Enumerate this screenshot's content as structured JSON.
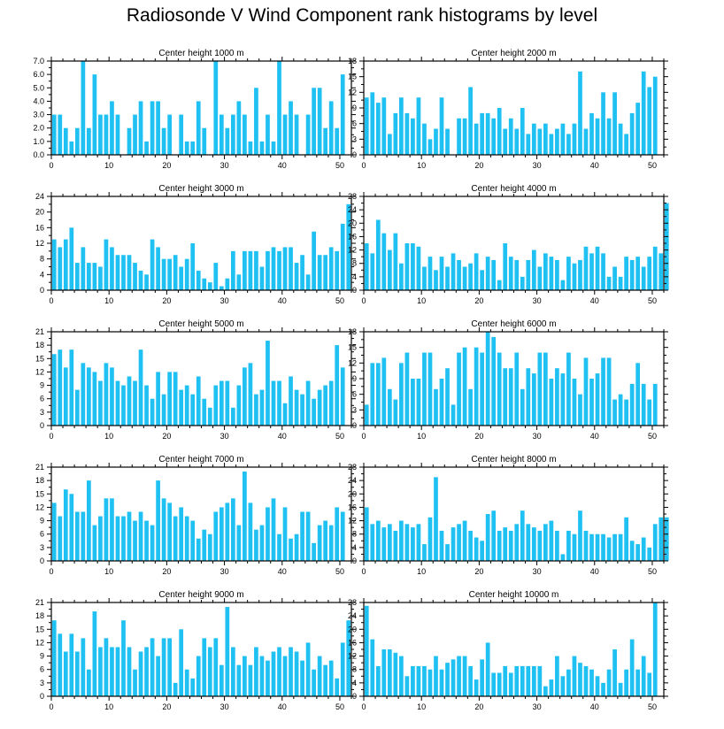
{
  "title": "Radiosonde V Wind Component rank histograms by level",
  "bar_color": "#1fc0f2",
  "chart_data": [
    {
      "type": "bar",
      "title": "Center height 1000 m",
      "xlabel": "",
      "ylabel": "",
      "xlim": [
        0,
        52
      ],
      "ylim": [
        0,
        7
      ],
      "xticks": [
        0,
        10,
        20,
        30,
        40,
        50
      ],
      "yticks": [
        "0.0",
        "1.0",
        "2.0",
        "3.0",
        "4.0",
        "5.0",
        "6.0",
        "7.0"
      ],
      "values": [
        3,
        3,
        2,
        1,
        2,
        7,
        2,
        6,
        3,
        3,
        4,
        3,
        0,
        2,
        3,
        4,
        1,
        4,
        4,
        2,
        3,
        0,
        3,
        1,
        1,
        4,
        2,
        0,
        7,
        3,
        2,
        3,
        4,
        3,
        1,
        5,
        1,
        3,
        1,
        7,
        3,
        4,
        3,
        0,
        3,
        5,
        5,
        2,
        4,
        2,
        6
      ]
    },
    {
      "type": "bar",
      "title": "Center height 2000 m",
      "xlabel": "",
      "ylabel": "",
      "xlim": [
        0,
        52
      ],
      "ylim": [
        0,
        18
      ],
      "xticks": [
        0,
        10,
        20,
        30,
        40,
        50
      ],
      "yticks": [
        "0",
        "3",
        "6",
        "9",
        "12",
        "15",
        "18"
      ],
      "values": [
        11,
        12,
        10,
        11,
        4,
        8,
        11,
        8,
        7,
        11,
        6,
        3,
        5,
        11,
        5,
        0,
        7,
        7,
        13,
        6,
        8,
        8,
        7,
        9,
        5,
        7,
        5,
        9,
        4,
        6,
        5,
        6,
        4,
        5,
        6,
        4,
        6,
        16,
        5,
        8,
        7,
        12,
        7,
        12,
        6,
        4,
        8,
        10,
        16,
        13,
        15
      ]
    },
    {
      "type": "bar",
      "title": "Center height 3000 m",
      "xlabel": "",
      "ylabel": "",
      "xlim": [
        0,
        52
      ],
      "ylim": [
        0,
        24
      ],
      "xticks": [
        0,
        10,
        20,
        30,
        40,
        50
      ],
      "yticks": [
        "0",
        "4",
        "8",
        "12",
        "16",
        "20",
        "24"
      ],
      "values": [
        13,
        11,
        13,
        16,
        7,
        11,
        7,
        7,
        6,
        13,
        11,
        9,
        9,
        9,
        7,
        5,
        4,
        13,
        11,
        8,
        8,
        9,
        6,
        8,
        12,
        5,
        3,
        2,
        7,
        1,
        3,
        10,
        4,
        10,
        10,
        10,
        6,
        10,
        11,
        10,
        11,
        11,
        7,
        9,
        4,
        15,
        9,
        9,
        11,
        10,
        17,
        22
      ]
    },
    {
      "type": "bar",
      "title": "Center height 4000 m",
      "xlabel": "",
      "ylabel": "",
      "xlim": [
        0,
        52
      ],
      "ylim": [
        0,
        28
      ],
      "xticks": [
        0,
        10,
        20,
        30,
        40,
        50
      ],
      "yticks": [
        "0",
        "4",
        "8",
        "12",
        "16",
        "20",
        "24",
        "28"
      ],
      "values": [
        14,
        11,
        21,
        17,
        12,
        17,
        8,
        14,
        14,
        13,
        7,
        10,
        6,
        10,
        7,
        11,
        9,
        7,
        8,
        11,
        6,
        10,
        9,
        3,
        14,
        10,
        9,
        4,
        9,
        12,
        7,
        11,
        10,
        9,
        3,
        10,
        8,
        9,
        13,
        11,
        13,
        11,
        4,
        7,
        4,
        10,
        9,
        10,
        7,
        10,
        13,
        11,
        26
      ]
    },
    {
      "type": "bar",
      "title": "Center height 5000 m",
      "xlabel": "",
      "ylabel": "",
      "xlim": [
        0,
        52
      ],
      "ylim": [
        0,
        21
      ],
      "xticks": [
        0,
        10,
        20,
        30,
        40,
        50
      ],
      "yticks": [
        "0",
        "3",
        "6",
        "9",
        "12",
        "15",
        "18",
        "21"
      ],
      "values": [
        16,
        17,
        13,
        17,
        8,
        14,
        13,
        12,
        10,
        14,
        13,
        10,
        9,
        11,
        10,
        17,
        9,
        6,
        12,
        7,
        12,
        12,
        8,
        9,
        7,
        11,
        6,
        4,
        9,
        10,
        10,
        4,
        9,
        13,
        14,
        7,
        8,
        19,
        10,
        10,
        5,
        11,
        8,
        7,
        10,
        6,
        8,
        9,
        10,
        18,
        13
      ]
    },
    {
      "type": "bar",
      "title": "Center height 6000 m",
      "xlabel": "",
      "ylabel": "",
      "xlim": [
        0,
        52
      ],
      "ylim": [
        0,
        18
      ],
      "xticks": [
        0,
        10,
        20,
        30,
        40,
        50
      ],
      "yticks": [
        "0",
        "3",
        "6",
        "9",
        "12",
        "15",
        "18"
      ],
      "values": [
        4,
        12,
        12,
        13,
        7,
        5,
        12,
        14,
        9,
        9,
        14,
        14,
        7,
        9,
        11,
        4,
        14,
        15,
        7,
        15,
        14,
        18,
        17,
        14,
        11,
        11,
        14,
        7,
        11,
        10,
        14,
        14,
        9,
        11,
        10,
        14,
        9,
        6,
        13,
        9,
        10,
        13,
        13,
        5,
        6,
        5,
        8,
        12,
        8,
        5,
        8
      ]
    },
    {
      "type": "bar",
      "title": "Center height 7000 m",
      "xlabel": "",
      "ylabel": "",
      "xlim": [
        0,
        52
      ],
      "ylim": [
        0,
        21
      ],
      "xticks": [
        0,
        10,
        20,
        30,
        40,
        50
      ],
      "yticks": [
        "0",
        "3",
        "6",
        "9",
        "12",
        "15",
        "18",
        "21"
      ],
      "values": [
        13,
        10,
        16,
        15,
        11,
        11,
        18,
        8,
        10,
        14,
        14,
        10,
        10,
        11,
        9,
        11,
        9,
        8,
        18,
        14,
        13,
        10,
        12,
        10,
        9,
        5,
        7,
        6,
        11,
        12,
        13,
        14,
        8,
        20,
        13,
        7,
        8,
        12,
        14,
        6,
        12,
        5,
        6,
        11,
        11,
        4,
        8,
        9,
        8,
        12,
        11
      ]
    },
    {
      "type": "bar",
      "title": "Center height 8000 m",
      "xlabel": "",
      "ylabel": "",
      "xlim": [
        0,
        52
      ],
      "ylim": [
        0,
        28
      ],
      "xticks": [
        0,
        10,
        20,
        30,
        40,
        50
      ],
      "yticks": [
        "0",
        "4",
        "8",
        "12",
        "16",
        "20",
        "24",
        "28"
      ],
      "values": [
        16,
        11,
        12,
        10,
        11,
        9,
        12,
        11,
        10,
        11,
        5,
        13,
        25,
        9,
        5,
        10,
        11,
        12,
        9,
        7,
        6,
        14,
        15,
        9,
        10,
        9,
        11,
        15,
        11,
        10,
        9,
        11,
        12,
        9,
        2,
        9,
        8,
        15,
        9,
        8,
        8,
        8,
        7,
        8,
        8,
        13,
        6,
        5,
        7,
        4,
        11,
        13,
        13
      ]
    },
    {
      "type": "bar",
      "title": "Center height 9000 m",
      "xlabel": "",
      "ylabel": "",
      "xlim": [
        0,
        52
      ],
      "ylim": [
        0,
        21
      ],
      "xticks": [
        0,
        10,
        20,
        30,
        40,
        50
      ],
      "yticks": [
        "0",
        "3",
        "6",
        "9",
        "12",
        "15",
        "18",
        "21"
      ],
      "values": [
        17,
        14,
        10,
        14,
        10,
        13,
        6,
        19,
        11,
        13,
        11,
        11,
        17,
        11,
        6,
        10,
        11,
        13,
        9,
        13,
        13,
        3,
        15,
        6,
        4,
        9,
        13,
        11,
        13,
        7,
        20,
        11,
        7,
        9,
        7,
        11,
        9,
        8,
        10,
        11,
        9,
        11,
        10,
        8,
        12,
        6,
        9,
        7,
        8,
        4,
        12,
        17
      ]
    },
    {
      "type": "bar",
      "title": "Center height 10000 m",
      "xlabel": "",
      "ylabel": "",
      "xlim": [
        0,
        52
      ],
      "ylim": [
        0,
        28
      ],
      "xticks": [
        0,
        10,
        20,
        30,
        40,
        50
      ],
      "yticks": [
        "0",
        "4",
        "8",
        "12",
        "16",
        "20",
        "24",
        "28"
      ],
      "values": [
        27,
        17,
        9,
        14,
        14,
        13,
        12,
        6,
        9,
        9,
        9,
        8,
        12,
        8,
        10,
        11,
        12,
        12,
        9,
        5,
        11,
        16,
        7,
        7,
        9,
        7,
        9,
        9,
        9,
        9,
        9,
        3,
        5,
        12,
        6,
        8,
        12,
        10,
        9,
        8,
        6,
        4,
        8,
        14,
        4,
        8,
        17,
        8,
        12,
        7,
        28
      ]
    }
  ]
}
